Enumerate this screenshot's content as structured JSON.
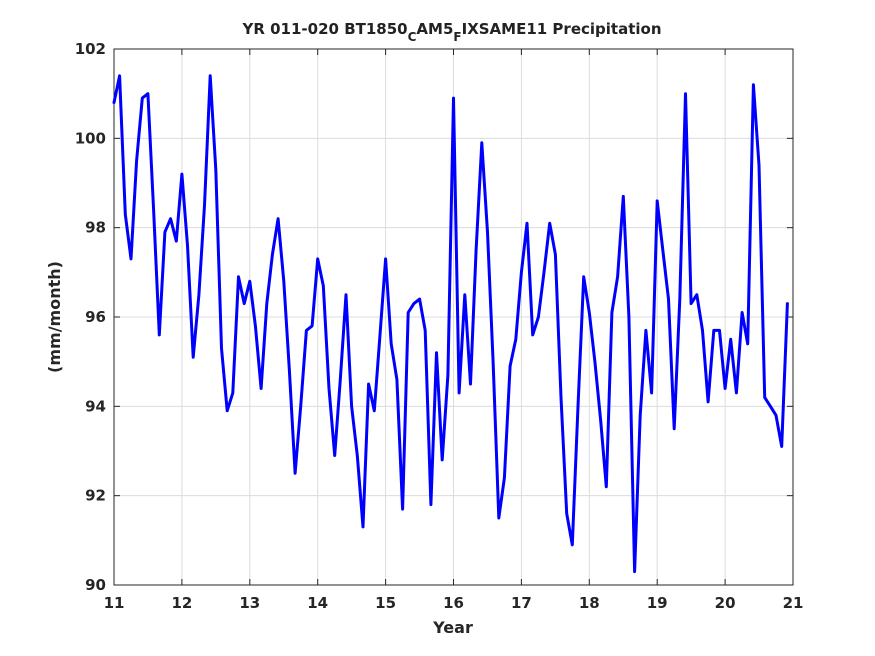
{
  "chart_data": {
    "type": "line",
    "title": {
      "part1": "YR 011-020 BT1850",
      "sub1": "C",
      "part2": "AM5",
      "sub2": "F",
      "part3": "IXSAME11 Precipitation"
    },
    "xlabel": "Year",
    "ylabel": "(mm/month)",
    "xlim": [
      11,
      21
    ],
    "ylim": [
      90,
      102
    ],
    "xticks": [
      "11",
      "12",
      "13",
      "14",
      "15",
      "16",
      "17",
      "18",
      "19",
      "20",
      "21"
    ],
    "yticks": [
      "90",
      "92",
      "94",
      "96",
      "98",
      "100",
      "102"
    ],
    "grid": true,
    "series": [
      {
        "color": "#0000ff",
        "x": [
          11.0,
          11.083,
          11.167,
          11.25,
          11.333,
          11.417,
          11.5,
          11.583,
          11.667,
          11.75,
          11.833,
          11.917,
          12.0,
          12.083,
          12.167,
          12.25,
          12.333,
          12.417,
          12.5,
          12.583,
          12.667,
          12.75,
          12.833,
          12.917,
          13.0,
          13.083,
          13.167,
          13.25,
          13.333,
          13.417,
          13.5,
          13.583,
          13.667,
          13.75,
          13.833,
          13.917,
          14.0,
          14.083,
          14.167,
          14.25,
          14.333,
          14.417,
          14.5,
          14.583,
          14.667,
          14.75,
          14.833,
          14.917,
          15.0,
          15.083,
          15.167,
          15.25,
          15.333,
          15.417,
          15.5,
          15.583,
          15.667,
          15.75,
          15.833,
          15.917,
          16.0,
          16.083,
          16.167,
          16.25,
          16.333,
          16.417,
          16.5,
          16.583,
          16.667,
          16.75,
          16.833,
          16.917,
          17.0,
          17.083,
          17.167,
          17.25,
          17.333,
          17.417,
          17.5,
          17.583,
          17.667,
          17.75,
          17.833,
          17.917,
          18.0,
          18.083,
          18.167,
          18.25,
          18.333,
          18.417,
          18.5,
          18.583,
          18.667,
          18.75,
          18.833,
          18.917,
          19.0,
          19.083,
          19.167,
          19.25,
          19.333,
          19.417,
          19.5,
          19.583,
          19.667,
          19.75,
          19.833,
          19.917,
          20.0,
          20.083,
          20.167,
          20.25,
          20.333,
          20.417,
          20.5,
          20.583,
          20.667,
          20.75,
          20.833,
          20.917
        ],
        "y": [
          100.8,
          101.4,
          98.3,
          97.3,
          99.5,
          100.9,
          101.0,
          98.4,
          95.6,
          97.9,
          98.2,
          97.7,
          99.2,
          97.6,
          95.1,
          96.5,
          98.5,
          101.4,
          99.3,
          95.3,
          93.9,
          94.3,
          96.9,
          96.3,
          96.8,
          95.8,
          94.4,
          96.3,
          97.4,
          98.2,
          96.8,
          94.8,
          92.5,
          94.0,
          95.7,
          95.8,
          97.3,
          96.7,
          94.4,
          92.9,
          94.6,
          96.5,
          94.0,
          92.9,
          91.3,
          94.5,
          93.9,
          95.6,
          97.3,
          95.4,
          94.6,
          91.7,
          96.1,
          96.3,
          96.4,
          95.7,
          91.8,
          95.2,
          92.8,
          94.7,
          100.9,
          94.3,
          96.5,
          94.5,
          97.5,
          99.9,
          97.9,
          95.0,
          91.5,
          92.4,
          94.9,
          95.5,
          97.0,
          98.1,
          95.6,
          96.0,
          97.0,
          98.1,
          97.4,
          94.2,
          91.6,
          90.9,
          94.0,
          96.9,
          96.1,
          95.0,
          93.7,
          92.2,
          96.1,
          96.9,
          98.7,
          96.0,
          90.3,
          93.8,
          95.7,
          94.3,
          98.6,
          97.5,
          96.4,
          93.5,
          96.4,
          101.0,
          96.3,
          96.5,
          95.7,
          94.1,
          95.7,
          95.7,
          94.4,
          95.5,
          94.3,
          96.1,
          95.4,
          101.2,
          99.4,
          94.2,
          94.0,
          93.8,
          93.1,
          96.3
        ]
      }
    ]
  }
}
